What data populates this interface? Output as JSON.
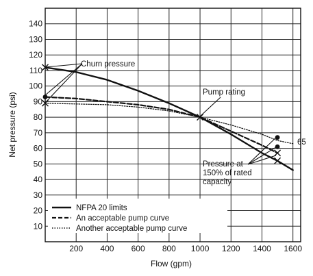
{
  "chart_data": {
    "type": "line",
    "xlabel": "Flow (gpm)",
    "ylabel": "Net pressure (psi)",
    "xlim": [
      0,
      1650
    ],
    "ylim": [
      0,
      150
    ],
    "x_ticks": [
      200,
      400,
      600,
      800,
      1000,
      1200,
      1400,
      1600
    ],
    "y_ticks": [
      10,
      20,
      30,
      40,
      50,
      60,
      70,
      80,
      90,
      100,
      110,
      120,
      130,
      140
    ],
    "grid": true,
    "legend_position": "bottom-left",
    "series": [
      {
        "name": "NFPA 20 limits",
        "style": "solid",
        "color": "#111111",
        "points": [
          [
            0,
            112
          ],
          [
            200,
            109
          ],
          [
            400,
            104
          ],
          [
            600,
            97
          ],
          [
            800,
            89
          ],
          [
            1000,
            80
          ],
          [
            1200,
            69
          ],
          [
            1400,
            57
          ],
          [
            1500,
            52
          ],
          [
            1600,
            46
          ]
        ]
      },
      {
        "name": "An acceptable pump curve",
        "style": "dashed",
        "color": "#111111",
        "points": [
          [
            0,
            93
          ],
          [
            200,
            92
          ],
          [
            400,
            90
          ],
          [
            600,
            88
          ],
          [
            800,
            85
          ],
          [
            1000,
            80
          ],
          [
            1200,
            71
          ],
          [
            1400,
            62
          ],
          [
            1500,
            57
          ]
        ]
      },
      {
        "name": "Another acceptable pump curve",
        "style": "dotted",
        "color": "#111111",
        "points": [
          [
            0,
            89
          ],
          [
            200,
            88.5
          ],
          [
            400,
            88
          ],
          [
            600,
            86.5
          ],
          [
            800,
            84
          ],
          [
            1000,
            80
          ],
          [
            1200,
            75
          ],
          [
            1400,
            69
          ],
          [
            1500,
            65
          ],
          [
            1600,
            63
          ]
        ]
      }
    ],
    "markers": [
      {
        "type": "x",
        "x": 0,
        "y": 112
      },
      {
        "type": "dot",
        "x": 0,
        "y": 93
      },
      {
        "type": "x",
        "x": 0,
        "y": 89
      },
      {
        "type": "x",
        "x": 1000,
        "y": 80
      },
      {
        "type": "dot",
        "x": 1500,
        "y": 67
      },
      {
        "type": "dot",
        "x": 1500,
        "y": 61
      },
      {
        "type": "x",
        "x": 1500,
        "y": 57
      },
      {
        "type": "x",
        "x": 1500,
        "y": 52
      }
    ],
    "annotations": {
      "churn_pressure": "Churn pressure",
      "pump_rating": "Pump rating",
      "pressure_150_line1": "Pressure at",
      "pressure_150_line2": "150% of rated",
      "pressure_150_line3": "capacity",
      "value_65": "65"
    }
  }
}
